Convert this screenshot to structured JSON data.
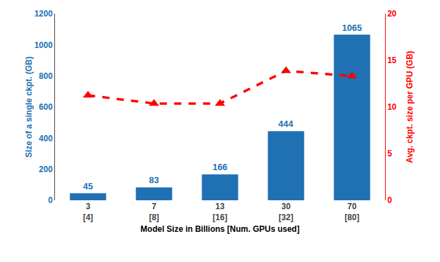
{
  "chart_data": {
    "type": "bar",
    "xlabel": "Model Size in Billions [Num. GPUs used]",
    "ylabel": "Size of a single ckpt. (GB)",
    "y2label": "Avg. ckpt. size per GPU (GB)",
    "categories": [
      "3\n[4]",
      "7\n[8]",
      "13\n[16]",
      "30\n[32]",
      "70\n[80]"
    ],
    "series": [
      {
        "type": "bar",
        "color": "#2070b4",
        "values": [
          45,
          83,
          166,
          444,
          1065
        ],
        "data_labels": true
      },
      {
        "type": "line",
        "axis": "y2",
        "color": "red",
        "line_style": "dashed",
        "marker": "triangle",
        "values": [
          11.25,
          10.375,
          10.375,
          13.875,
          13.3125
        ]
      }
    ],
    "ylim": [
      0,
      1200
    ],
    "yticks": [
      0,
      200,
      400,
      600,
      800,
      1000,
      1200
    ],
    "y2lim": [
      0,
      20
    ],
    "y2ticks": [
      0,
      5,
      10,
      15,
      20
    ],
    "grid": false
  }
}
